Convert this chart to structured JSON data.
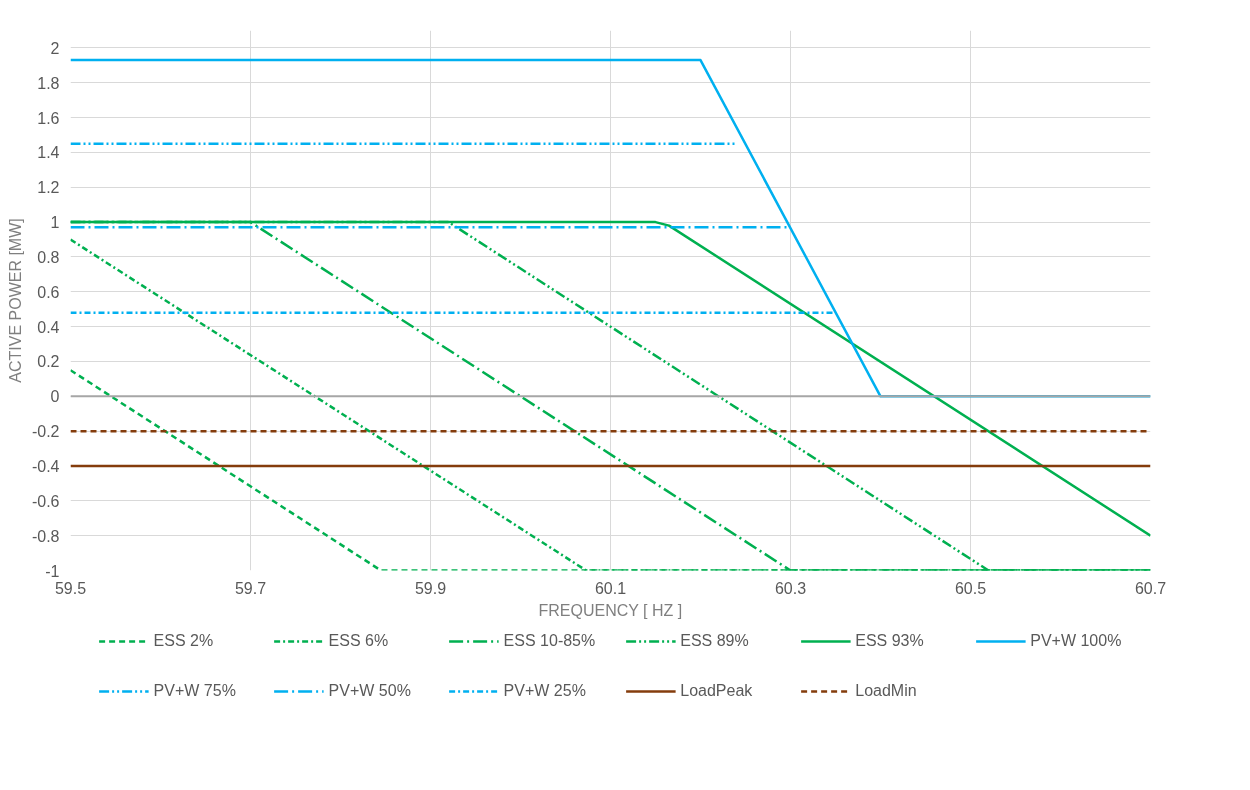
{
  "chart_data": {
    "type": "line",
    "xlabel": "FREQUENCY [ HZ ]",
    "ylabel": "ACTIVE POWER [MW]",
    "xlim": [
      59.5,
      60.7
    ],
    "xticks": [
      59.5,
      59.7,
      59.9,
      60.1,
      60.3,
      60.5,
      60.7
    ],
    "ylim": [
      -1,
      2.1
    ],
    "yticks": [
      -1,
      -0.8,
      -0.6,
      -0.4,
      -0.2,
      0,
      0.2,
      0.4,
      0.6,
      0.8,
      1,
      1.2,
      1.4,
      1.6,
      1.8,
      2
    ],
    "grid": true,
    "legend": "bottom",
    "marker": "none",
    "ref_lines": [
      {
        "axis": "y",
        "value": 0,
        "color": "#a6a6a6"
      }
    ],
    "series": [
      {
        "name": "ESS 2%",
        "color": "#00b050",
        "line_style": "dashed",
        "x": [
          59.5,
          59.845,
          60.7
        ],
        "values": [
          0.15,
          -1,
          -1
        ]
      },
      {
        "name": "ESS 6%",
        "color": "#00b050",
        "line_style": "dashdot",
        "x": [
          59.5,
          60.073,
          60.7
        ],
        "values": [
          0.9,
          -1,
          -1
        ]
      },
      {
        "name": "ESS 10-85%",
        "color": "#00b050",
        "line_style": "longdashdot",
        "x": [
          59.5,
          59.7,
          60.3,
          60.7
        ],
        "values": [
          1,
          1,
          -1,
          -1
        ]
      },
      {
        "name": "ESS 89%",
        "color": "#00b050",
        "line_style": "dashdotdot",
        "x": [
          59.5,
          59.92,
          60.52,
          60.7
        ],
        "values": [
          1,
          1,
          -1,
          -1
        ]
      },
      {
        "name": "ESS 93%",
        "color": "#00b050",
        "line_style": "solid",
        "x": [
          59.5,
          60.15,
          60.165,
          60.7
        ],
        "values": [
          1,
          1,
          0.98,
          -0.8
        ]
      },
      {
        "name": "PV+W 100%",
        "color": "#00b0f0",
        "line_style": "solid",
        "x": [
          59.5,
          60.2,
          60.4,
          60.7
        ],
        "values": [
          1.93,
          1.93,
          0,
          0
        ]
      },
      {
        "name": "PV+W 75%",
        "color": "#00b0f0",
        "line_style": "dashdotdot",
        "x": [
          59.5,
          60.24
        ],
        "values": [
          1.45,
          1.45
        ]
      },
      {
        "name": "PV+W 50%",
        "color": "#00b0f0",
        "line_style": "longdashdot",
        "x": [
          59.5,
          60.3
        ],
        "values": [
          0.97,
          0.97
        ]
      },
      {
        "name": "PV+W 25%",
        "color": "#00b0f0",
        "line_style": "dashdot",
        "x": [
          59.5,
          60.35
        ],
        "values": [
          0.48,
          0.48
        ]
      },
      {
        "name": "LoadPeak",
        "color": "#843c0c",
        "line_style": "solid",
        "x": [
          59.5,
          60.7
        ],
        "values": [
          -0.4,
          -0.4
        ]
      },
      {
        "name": "LoadMin",
        "color": "#843c0c",
        "line_style": "dashed",
        "x": [
          59.5,
          60.7
        ],
        "values": [
          -0.2,
          -0.2
        ]
      }
    ]
  }
}
